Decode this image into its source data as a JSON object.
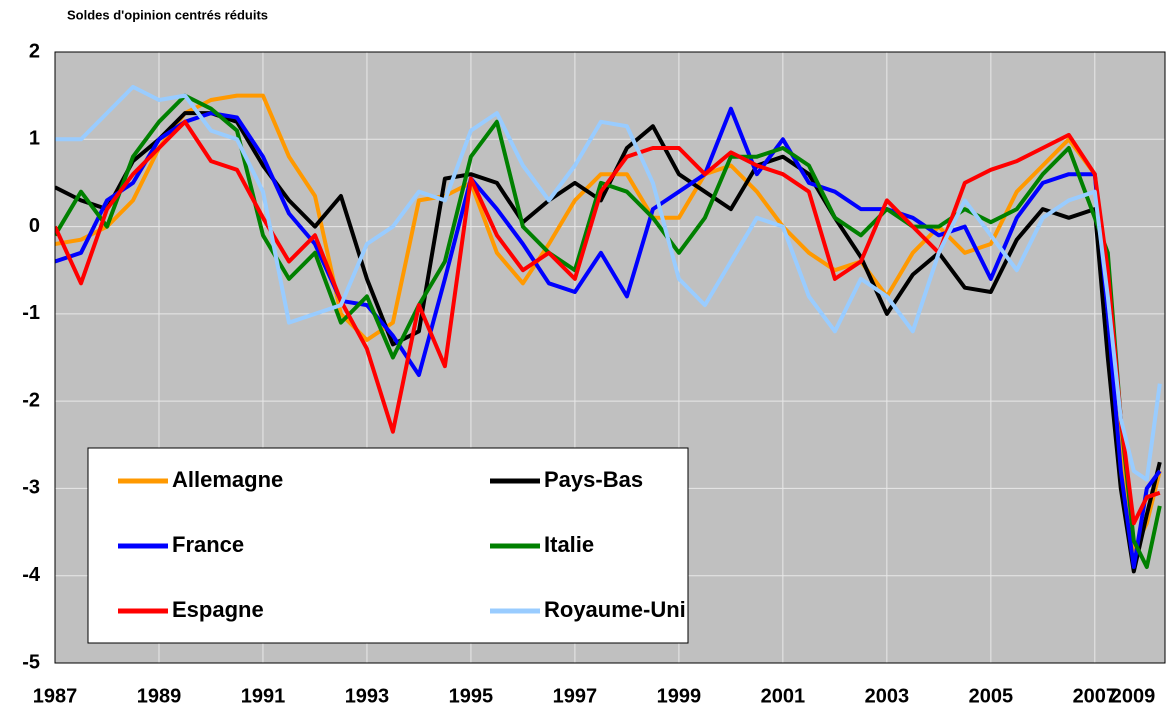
{
  "chart_data": {
    "type": "line",
    "title": "Soldes d'opinion centrés réduits",
    "x": [
      1987,
      1987.5,
      1988,
      1988.5,
      1989,
      1989.5,
      1990,
      1990.5,
      1991,
      1991.5,
      1992,
      1992.5,
      1993,
      1993.5,
      1994,
      1994.5,
      1995,
      1995.5,
      1996,
      1996.5,
      1997,
      1997.5,
      1998,
      1998.5,
      1999,
      1999.5,
      2000,
      2000.5,
      2001,
      2001.5,
      2002,
      2002.5,
      2003,
      2003.5,
      2004,
      2004.5,
      2005,
      2005.5,
      2006,
      2006.5,
      2007,
      2007.25,
      2007.5,
      2007.75,
      2008,
      2008.25
    ],
    "series": [
      {
        "name": "Allemagne",
        "color": "#ff9900",
        "values": [
          -0.2,
          -0.15,
          0.0,
          0.3,
          0.9,
          1.3,
          1.45,
          1.5,
          1.5,
          0.8,
          0.35,
          -1.0,
          -1.3,
          -1.1,
          0.3,
          0.35,
          0.5,
          -0.3,
          -0.65,
          -0.2,
          0.3,
          0.6,
          0.6,
          0.1,
          0.1,
          0.6,
          0.7,
          0.4,
          0.0,
          -0.3,
          -0.5,
          -0.4,
          -0.8,
          -0.3,
          0.0,
          -0.3,
          -0.2,
          0.4,
          0.7,
          1.0,
          0.6,
          -0.8,
          -2.4,
          -3.7,
          -3.4,
          -2.8
        ]
      },
      {
        "name": "Pays-Bas",
        "color": "#000000",
        "values": [
          0.45,
          0.3,
          0.2,
          0.75,
          1.0,
          1.3,
          1.3,
          1.2,
          0.7,
          0.3,
          0.0,
          0.35,
          -0.6,
          -1.35,
          -1.2,
          0.55,
          0.6,
          0.5,
          0.05,
          0.3,
          0.5,
          0.3,
          0.9,
          1.15,
          0.6,
          0.4,
          0.2,
          0.7,
          0.8,
          0.6,
          0.1,
          -0.35,
          -1.0,
          -0.55,
          -0.3,
          -0.7,
          -0.75,
          -0.15,
          0.2,
          0.1,
          0.2,
          -1.5,
          -3.0,
          -3.95,
          -3.3,
          -2.7
        ]
      },
      {
        "name": "France",
        "color": "#0000ff",
        "values": [
          -0.4,
          -0.3,
          0.3,
          0.5,
          1.0,
          1.2,
          1.3,
          1.25,
          0.8,
          0.15,
          -0.2,
          -0.85,
          -0.9,
          -1.25,
          -1.7,
          -0.6,
          0.55,
          0.2,
          -0.2,
          -0.65,
          -0.75,
          -0.3,
          -0.8,
          0.2,
          0.4,
          0.6,
          1.35,
          0.6,
          1.0,
          0.5,
          0.4,
          0.2,
          0.2,
          0.1,
          -0.1,
          0.0,
          -0.6,
          0.1,
          0.5,
          0.6,
          0.6,
          -1.0,
          -2.8,
          -3.9,
          -3.0,
          -2.8
        ]
      },
      {
        "name": "Italie",
        "color": "#008000",
        "values": [
          -0.1,
          0.4,
          0.0,
          0.8,
          1.2,
          1.5,
          1.35,
          1.1,
          -0.1,
          -0.6,
          -0.3,
          -1.1,
          -0.8,
          -1.5,
          -0.9,
          -0.4,
          0.8,
          1.2,
          0.0,
          -0.3,
          -0.5,
          0.5,
          0.4,
          0.1,
          -0.3,
          0.1,
          0.8,
          0.8,
          0.9,
          0.7,
          0.1,
          -0.1,
          0.2,
          0.0,
          0.0,
          0.2,
          0.05,
          0.2,
          0.6,
          0.9,
          0.1,
          -0.3,
          -2.2,
          -3.6,
          -3.9,
          -3.2
        ]
      },
      {
        "name": "Espagne",
        "color": "#ff0000",
        "values": [
          0.0,
          -0.65,
          0.2,
          0.6,
          0.9,
          1.2,
          0.75,
          0.65,
          0.1,
          -0.4,
          -0.1,
          -0.85,
          -1.4,
          -2.35,
          -0.9,
          -1.6,
          0.55,
          -0.1,
          -0.5,
          -0.3,
          -0.6,
          0.4,
          0.8,
          0.9,
          0.9,
          0.6,
          0.85,
          0.7,
          0.6,
          0.4,
          -0.6,
          -0.4,
          0.3,
          0.0,
          -0.3,
          0.5,
          0.65,
          0.75,
          0.9,
          1.05,
          0.6,
          -0.5,
          -2.2,
          -3.4,
          -3.1,
          -3.05
        ]
      },
      {
        "name": "Royaume-Uni",
        "color": "#99ccff",
        "values": [
          1.0,
          1.0,
          1.3,
          1.6,
          1.45,
          1.5,
          1.1,
          1.0,
          0.4,
          -1.1,
          -1.0,
          -0.9,
          -0.2,
          0.0,
          0.4,
          0.3,
          1.1,
          1.3,
          0.7,
          0.3,
          0.7,
          1.2,
          1.15,
          0.5,
          -0.6,
          -0.9,
          -0.4,
          0.1,
          0.0,
          -0.8,
          -1.2,
          -0.6,
          -0.8,
          -1.2,
          -0.3,
          0.3,
          -0.1,
          -0.5,
          0.1,
          0.3,
          0.4,
          -0.8,
          -2.2,
          -2.8,
          -2.9,
          -1.8
        ]
      }
    ],
    "xlim": [
      1987,
      2008.35
    ],
    "xticks": [
      1987,
      1989,
      1991,
      1993,
      1995,
      1997,
      1999,
      2001,
      2003,
      2005,
      2007,
      2009
    ],
    "ylim": [
      -5,
      2
    ],
    "yticks": [
      -5,
      -4,
      -3,
      -2,
      -1,
      0,
      1,
      2
    ],
    "grid": true,
    "legend": "lower left"
  }
}
